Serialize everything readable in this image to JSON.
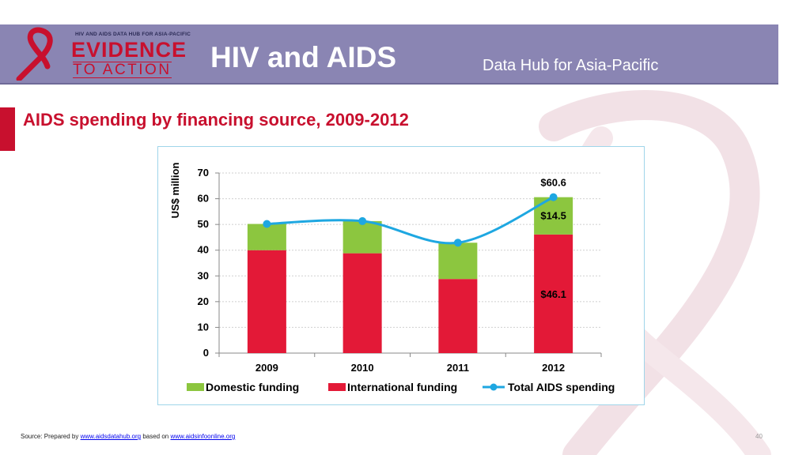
{
  "header": {
    "logo_small_text": "HIV AND AIDS DATA HUB FOR ASIA-PACIFIC",
    "logo_text_top": "EVIDENCE",
    "logo_text_bottom": "TO ACTION",
    "title": "HIV and AIDS",
    "subtitle": "Data Hub for Asia-Pacific"
  },
  "slide": {
    "title": "AIDS spending by financing source, 2009-2012"
  },
  "footer": {
    "prefix": "Source: Prepared by ",
    "link1": "www.aidsdatahub.org",
    "middle": " based on ",
    "link2": "www.aidsinfoonline.org"
  },
  "page_number": "40",
  "colors": {
    "header_bg": "#8a85b3",
    "accent_red": "#c8102e",
    "domestic": "#8cc63f",
    "international": "#e31937",
    "total_line": "#1ea7e1"
  },
  "chart_data": {
    "type": "bar",
    "stacked": true,
    "categories": [
      "2009",
      "2010",
      "2011",
      "2012"
    ],
    "series": [
      {
        "name": "International funding",
        "values": [
          40,
          38.8,
          28.8,
          46.1
        ],
        "color": "#e31937"
      },
      {
        "name": "Domestic funding",
        "values": [
          10.2,
          12.5,
          14.1,
          14.5
        ],
        "color": "#8cc63f"
      }
    ],
    "line_series": {
      "name": "Total AIDS spending",
      "values": [
        50.2,
        51.3,
        42.9,
        60.6
      ],
      "color": "#1ea7e1"
    },
    "data_labels": [
      {
        "category": "2012",
        "series": "Total AIDS spending",
        "text": "$60.6"
      },
      {
        "category": "2012",
        "series": "Domestic funding",
        "text": "$14.5"
      },
      {
        "category": "2012",
        "series": "International funding",
        "text": "$46.1"
      }
    ],
    "ylabel": "US$ million",
    "ylim": [
      0,
      70
    ],
    "yticks": [
      0,
      10,
      20,
      30,
      40,
      50,
      60,
      70
    ],
    "grid": true,
    "legend": {
      "placement": "bottom",
      "entries": [
        "Domestic funding",
        "International funding",
        "Total AIDS spending"
      ]
    }
  }
}
